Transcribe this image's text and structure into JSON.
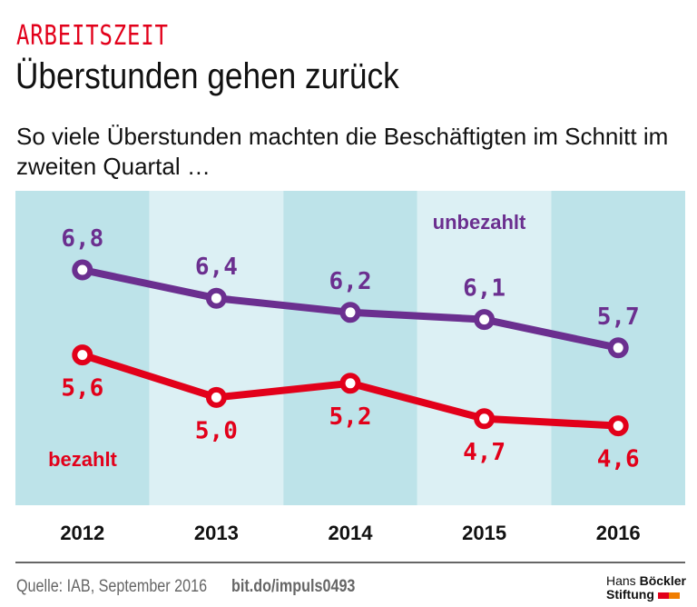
{
  "header": {
    "kicker": "ARBEITSZEIT",
    "title": "Überstunden gehen zurück",
    "subtitle": "So viele Überstunden machten die Beschäftigten im Schnitt im zweiten Quartal …"
  },
  "chart_data": {
    "type": "line",
    "categories": [
      "2012",
      "2013",
      "2014",
      "2015",
      "2016"
    ],
    "series": [
      {
        "name": "unbezahlt",
        "values": [
          6.8,
          6.4,
          6.2,
          6.1,
          5.7
        ],
        "labels": [
          "6,8",
          "6,4",
          "6,2",
          "6,1",
          "5,7"
        ],
        "color": "#6b2f8f"
      },
      {
        "name": "bezahlt",
        "values": [
          5.6,
          5.0,
          5.2,
          4.7,
          4.6
        ],
        "labels": [
          "5,6",
          "5,0",
          "5,2",
          "4,7",
          "4,6"
        ],
        "color": "#e2001a"
      }
    ],
    "grid": false,
    "column_colors": [
      "#bde3e9",
      "#dcf0f4"
    ]
  },
  "footer": {
    "source": "Quelle: IAB, September 2016",
    "link": "bit.do/impuls0493",
    "logo_line1a": "Hans",
    "logo_line1b": "Böckler",
    "logo_line2": "Stiftung",
    "logo_colors": [
      "#e2001a",
      "#f07d00"
    ]
  }
}
